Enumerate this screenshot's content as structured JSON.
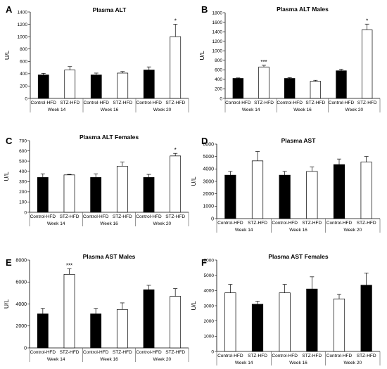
{
  "chart_data": [
    {
      "id": "panel_a",
      "panel_label": "A",
      "type": "bar",
      "title": "Plasma ALT",
      "ylabel": "U/L",
      "ylim": [
        0,
        1400
      ],
      "yticks": [
        0,
        200,
        400,
        600,
        800,
        1000,
        1200,
        1400
      ],
      "groups": [
        "Week 14",
        "Week 16",
        "Week 20"
      ],
      "categories": [
        "Control-HFD",
        "STZ-HFD",
        "Control-HFD",
        "STZ-HFD",
        "Control-HFD",
        "STZ-HFD"
      ],
      "values": [
        380,
        460,
        380,
        410,
        460,
        1000
      ],
      "errors": [
        25,
        55,
        30,
        25,
        50,
        200
      ],
      "fills": [
        "black",
        "white",
        "black",
        "white",
        "black",
        "white"
      ],
      "significance": [
        "",
        "",
        "",
        "",
        "",
        "*"
      ]
    },
    {
      "id": "panel_b",
      "panel_label": "B",
      "type": "bar",
      "title": "Plasma ALT Males",
      "ylabel": "U/L",
      "ylim": [
        0,
        1800
      ],
      "yticks": [
        0,
        200,
        400,
        600,
        800,
        1000,
        1200,
        1400,
        1600,
        1800
      ],
      "groups": [
        "Week 14",
        "Week 16",
        "Week 20"
      ],
      "categories": [
        "Control-HFD",
        "STZ-HFD",
        "Control-HFD",
        "STZ-HFD",
        "Control-HFD",
        "STZ-HFD"
      ],
      "values": [
        420,
        660,
        420,
        360,
        580,
        1440
      ],
      "errors": [
        10,
        35,
        15,
        20,
        35,
        120
      ],
      "fills": [
        "black",
        "white",
        "black",
        "white",
        "black",
        "white"
      ],
      "significance": [
        "",
        "***",
        "",
        "",
        "",
        "*"
      ]
    },
    {
      "id": "panel_c",
      "panel_label": "C",
      "type": "bar",
      "title": "Plasma ALT Females",
      "ylabel": "U/L",
      "ylim": [
        0,
        700
      ],
      "yticks": [
        0,
        100,
        200,
        300,
        400,
        500,
        600,
        700
      ],
      "groups": [
        "Week 14",
        "Week 16",
        "Week 20"
      ],
      "categories": [
        "Control-HFD",
        "STZ-HFD",
        "Control-HFD",
        "STZ-HFD",
        "Control-HFD",
        "STZ-HFD"
      ],
      "values": [
        340,
        365,
        340,
        450,
        340,
        550
      ],
      "errors": [
        35,
        5,
        35,
        40,
        30,
        25
      ],
      "fills": [
        "black",
        "white",
        "black",
        "white",
        "black",
        "white"
      ],
      "significance": [
        "",
        "",
        "",
        "",
        "",
        "*"
      ]
    },
    {
      "id": "panel_d",
      "panel_label": "D",
      "type": "bar",
      "title": "Plasma AST",
      "ylabel": "U/L",
      "ylim": [
        0,
        6000
      ],
      "yticks": [
        0,
        1000,
        2000,
        3000,
        4000,
        5000,
        6000
      ],
      "groups": [
        "Week 14",
        "Week 16",
        "Week 20"
      ],
      "categories": [
        "Control-HFD",
        "STZ-HFD",
        "Control-HFD",
        "STZ-HFD",
        "Control-HFD",
        "STZ-HFD"
      ],
      "values": [
        3500,
        4650,
        3500,
        3800,
        4350,
        4550
      ],
      "errors": [
        300,
        750,
        300,
        350,
        450,
        450
      ],
      "fills": [
        "black",
        "white",
        "black",
        "white",
        "black",
        "white"
      ],
      "significance": [
        "",
        "",
        "",
        "",
        "",
        ""
      ]
    },
    {
      "id": "panel_e",
      "panel_label": "E",
      "type": "bar",
      "title": "Plasma AST Males",
      "ylabel": "U/L",
      "ylim": [
        0,
        8000
      ],
      "yticks": [
        0,
        2000,
        4000,
        6000,
        8000
      ],
      "groups": [
        "Week 14",
        "Week 16",
        "Week 20"
      ],
      "categories": [
        "Control-HFD",
        "STZ-HFD",
        "Control-HFD",
        "STZ-HFD",
        "Control-HFD",
        "STZ-HFD"
      ],
      "values": [
        3100,
        6700,
        3100,
        3500,
        5300,
        4700
      ],
      "errors": [
        500,
        500,
        500,
        600,
        400,
        700
      ],
      "fills": [
        "black",
        "white",
        "black",
        "white",
        "black",
        "white"
      ],
      "significance": [
        "",
        "***",
        "",
        "",
        "",
        ""
      ]
    },
    {
      "id": "panel_f",
      "panel_label": "F",
      "type": "bar",
      "title": "Plasma AST Females",
      "ylabel": "U/L",
      "ylim": [
        0,
        6000
      ],
      "yticks": [
        0,
        1000,
        2000,
        3000,
        4000,
        5000,
        6000
      ],
      "groups": [
        "Week 14",
        "Week 16",
        "Week 20"
      ],
      "categories": [
        "Control-HFD",
        "STZ-HFD",
        "Control-HFD",
        "STZ-HFD",
        "Control-HFD",
        "STZ-HFD"
      ],
      "values": [
        3850,
        3100,
        3850,
        4100,
        3450,
        4350
      ],
      "errors": [
        550,
        200,
        550,
        800,
        300,
        800
      ],
      "fills": [
        "white",
        "black",
        "white",
        "black",
        "white",
        "black"
      ],
      "significance": [
        "",
        "",
        "",
        "",
        "",
        ""
      ]
    }
  ]
}
